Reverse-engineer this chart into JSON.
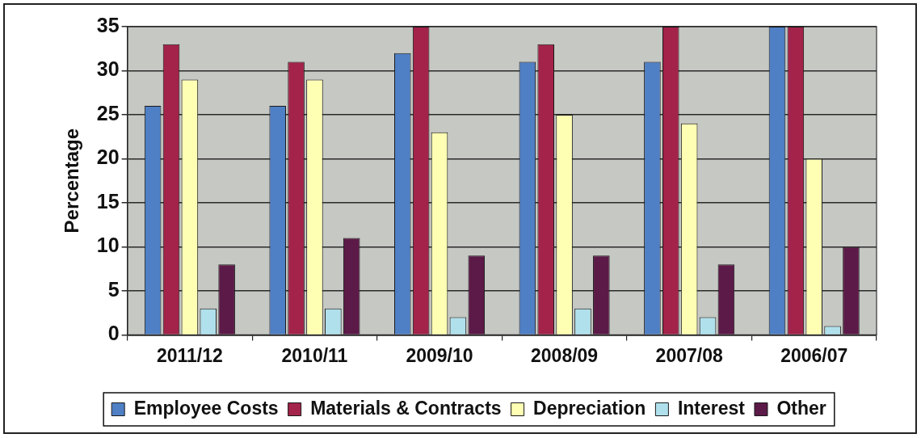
{
  "chart_data": {
    "type": "bar",
    "categories": [
      "2011/12",
      "2010/11",
      "2009/10",
      "2008/09",
      "2007/08",
      "2006/07"
    ],
    "series": [
      {
        "name": "Employee Costs",
        "color": "#4f7fc4",
        "values": [
          26,
          26,
          32,
          31,
          31,
          35
        ]
      },
      {
        "name": "Materials & Contracts",
        "color": "#a3234a",
        "values": [
          33,
          31,
          35,
          33,
          35,
          35
        ]
      },
      {
        "name": "Depreciation",
        "color": "#ffffb4",
        "values": [
          29,
          29,
          23,
          25,
          24,
          20
        ]
      },
      {
        "name": "Interest",
        "color": "#b0e0ec",
        "values": [
          3,
          3,
          2,
          3,
          2,
          1
        ]
      },
      {
        "name": "Other",
        "color": "#5c1a48",
        "values": [
          8,
          11,
          9,
          9,
          8,
          10
        ]
      }
    ],
    "ylabel": "Percentage",
    "ylim": [
      0,
      35
    ],
    "yticks": [
      0,
      5,
      10,
      15,
      20,
      25,
      30,
      35
    ],
    "grid": "y",
    "legend": "bottom"
  }
}
